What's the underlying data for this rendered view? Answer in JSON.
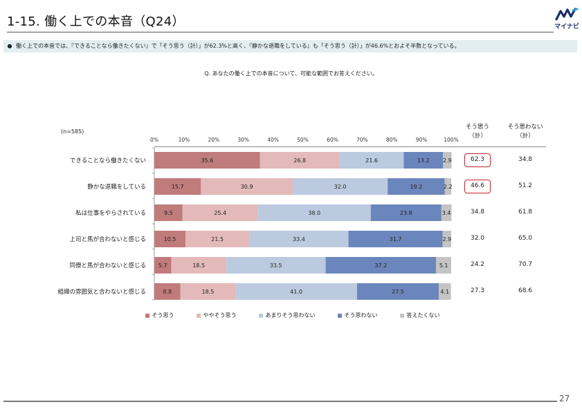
{
  "header": {
    "title": "1-15.  働く上での本音（Q24）",
    "logo_text": "マイナビ"
  },
  "summary": {
    "bullet": "●",
    "text": "働く上での本音では、『できることなら働きたくない』で「そう思う（計）」が62.3%と高く、『静かな退職をしている』も「そう思う（計）」が46.6%とおよそ半数となっている。"
  },
  "question": "Q. あなたの働く上での本音について、可能な範囲でお答えください。",
  "n_label": "(n=585)",
  "columns": {
    "agree": [
      "そう思う",
      "（計）"
    ],
    "disagree": [
      "そう思わない",
      "（計）"
    ]
  },
  "colors": {
    "s1": "#c07b7b",
    "s2": "#e3b9b9",
    "s3": "#bccae0",
    "s4": "#6b86bc",
    "s5": "#c4c4c4",
    "highlight": "#c0202a"
  },
  "chart_data": {
    "type": "bar",
    "orientation": "horizontal",
    "stacked": true,
    "xlim": [
      0,
      100
    ],
    "x_ticks": [
      "0%",
      "10%",
      "20%",
      "30%",
      "40%",
      "50%",
      "60%",
      "70%",
      "80%",
      "90%",
      "100%"
    ],
    "categories": [
      "できることなら働きたくない",
      "静かな退職をしている",
      "私は仕事をやらされている",
      "上司と馬が合わないと感じる",
      "同僚と馬が合わないと感じる",
      "組織の雰囲気と合わないと感じる"
    ],
    "series": [
      {
        "name": "そう思う",
        "values": [
          35.6,
          15.7,
          9.5,
          10.5,
          5.7,
          8.8
        ]
      },
      {
        "name": "ややそう思う",
        "values": [
          26.8,
          30.9,
          25.4,
          21.5,
          18.5,
          18.5
        ]
      },
      {
        "name": "あまりそう思わない",
        "values": [
          21.6,
          32.0,
          38.0,
          33.4,
          33.5,
          41.0
        ]
      },
      {
        "name": "そう思わない",
        "values": [
          13.2,
          19.2,
          23.8,
          31.7,
          37.2,
          27.5
        ]
      },
      {
        "name": "答えたくない",
        "values": [
          2.9,
          2.2,
          3.4,
          2.9,
          5.1,
          4.1
        ]
      }
    ],
    "totals_agree": [
      "62.3",
      "46.6",
      "34.8",
      "32.0",
      "24.2",
      "27.3"
    ],
    "totals_disagree": [
      "34.8",
      "51.2",
      "61.8",
      "65.0",
      "70.7",
      "68.6"
    ],
    "highlighted_rows": [
      0,
      1
    ]
  },
  "page_number": "27"
}
